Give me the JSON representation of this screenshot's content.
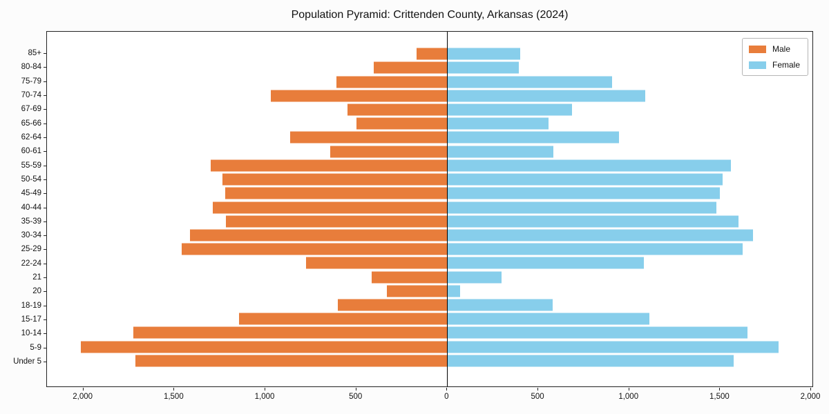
{
  "title": "Population Pyramid: Crittenden County, Arkansas (2024)",
  "colors": {
    "male": "#e87d3b",
    "female": "#87ceeb",
    "axis": "#222222",
    "zero_line": "#000000",
    "legend_border": "#b5b5b5",
    "background": "#fcfcfc"
  },
  "legend": {
    "items": [
      {
        "label": "Male",
        "color": "#e87d3b"
      },
      {
        "label": "Female",
        "color": "#87ceeb"
      }
    ]
  },
  "chart_data": {
    "type": "bar",
    "subtype": "population-pyramid",
    "title": "Population Pyramid: Crittenden County, Arkansas (2024)",
    "categories": [
      "85+",
      "80-84",
      "75-79",
      "70-74",
      "67-69",
      "65-66",
      "62-64",
      "60-61",
      "55-59",
      "50-54",
      "45-49",
      "40-44",
      "35-39",
      "30-34",
      "25-29",
      "22-24",
      "21",
      "20",
      "18-19",
      "15-17",
      "10-14",
      "5-9",
      "Under 5"
    ],
    "series": [
      {
        "name": "Male",
        "side": "left",
        "color": "#e87d3b",
        "values": [
          170,
          405,
          610,
          970,
          550,
          500,
          865,
          645,
          1300,
          1235,
          1220,
          1290,
          1215,
          1415,
          1460,
          775,
          415,
          330,
          600,
          1145,
          1725,
          2015,
          1715
        ]
      },
      {
        "name": "Female",
        "side": "right",
        "color": "#87ceeb",
        "values": [
          400,
          395,
          905,
          1090,
          685,
          555,
          945,
          585,
          1560,
          1515,
          1500,
          1480,
          1600,
          1680,
          1625,
          1080,
          300,
          70,
          580,
          1110,
          1650,
          1820,
          1575
        ]
      }
    ],
    "x_tick_values": [
      -2000,
      -1500,
      -1000,
      -500,
      0,
      500,
      1000,
      1500,
      2000
    ],
    "x_tick_labels": [
      "2,000",
      "1,500",
      "1,000",
      "500",
      "0",
      "500",
      "1,000",
      "1,500",
      "2,000"
    ],
    "xlim": [
      -2200,
      2015
    ],
    "grid": false,
    "legend_position": "upper right",
    "xlabel": "",
    "ylabel": ""
  }
}
